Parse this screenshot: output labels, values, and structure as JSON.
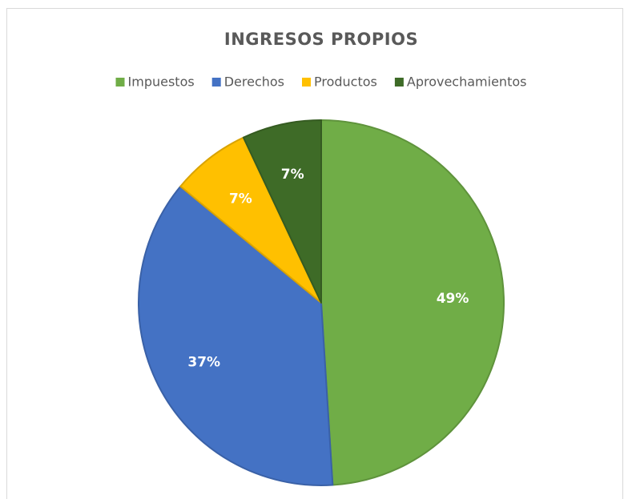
{
  "chart_data": {
    "type": "pie",
    "title": "INGRESOS PROPIOS",
    "categories": [
      "Impuestos",
      "Derechos",
      "Productos",
      "Aprovechamientos"
    ],
    "values": [
      49,
      37,
      7,
      7
    ],
    "value_labels": [
      "49%",
      "37%",
      "7%",
      "7%"
    ],
    "colors": [
      "#70ad47",
      "#4472c4",
      "#ffc000",
      "#3e6b27"
    ],
    "legend": "top"
  }
}
